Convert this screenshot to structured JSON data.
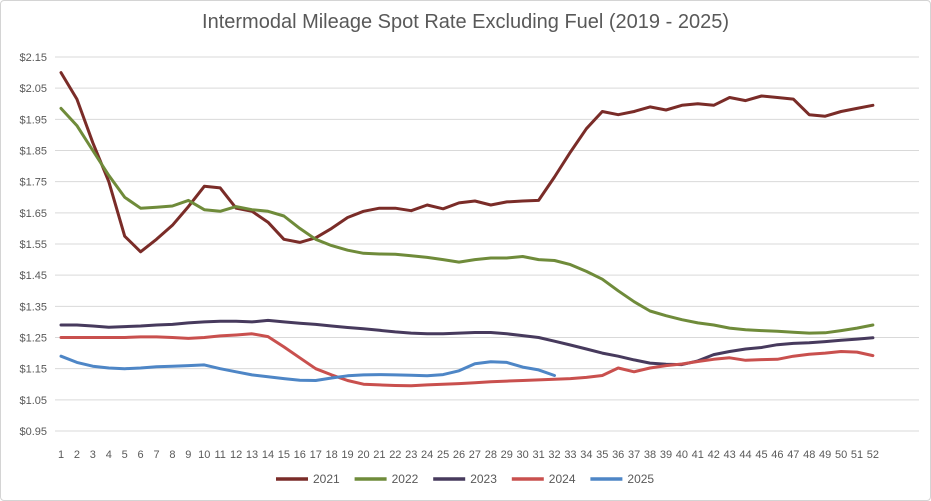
{
  "chart_data": {
    "type": "line",
    "title": "Intermodal Mileage Spot Rate Excluding Fuel (2019 - 2025)",
    "xlabel": "",
    "ylabel": "",
    "x_labels": [
      1,
      2,
      3,
      4,
      5,
      6,
      7,
      8,
      9,
      10,
      11,
      12,
      13,
      14,
      15,
      16,
      17,
      18,
      19,
      20,
      21,
      22,
      23,
      24,
      25,
      26,
      27,
      28,
      29,
      30,
      31,
      32,
      33,
      34,
      35,
      36,
      37,
      38,
      39,
      40,
      41,
      42,
      43,
      44,
      45,
      46,
      47,
      48,
      49,
      50,
      51,
      52
    ],
    "y_tick_labels": [
      "$2.15",
      "$2.05",
      "$1.95",
      "$1.85",
      "$1.75",
      "$1.65",
      "$1.55",
      "$1.45",
      "$1.35",
      "$1.25",
      "$1.15",
      "$1.05",
      "$0.95"
    ],
    "ylim": [
      0.95,
      2.15
    ],
    "y_tick_step": 0.1,
    "grid": "horizontal",
    "legend_position": "bottom",
    "series": [
      {
        "name": "2021",
        "color": "#7a2c28",
        "values": [
          2.1,
          2.015,
          1.875,
          1.75,
          1.575,
          1.525,
          1.565,
          1.61,
          1.67,
          1.735,
          1.73,
          1.665,
          1.655,
          1.62,
          1.565,
          1.555,
          1.57,
          1.6,
          1.635,
          1.655,
          1.665,
          1.665,
          1.657,
          1.675,
          1.663,
          1.682,
          1.688,
          1.675,
          1.685,
          1.688,
          1.69,
          1.765,
          1.845,
          1.92,
          1.975,
          1.965,
          1.975,
          1.99,
          1.98,
          1.995,
          2.0,
          1.995,
          2.02,
          2.01,
          2.025,
          2.02,
          2.015,
          1.965,
          1.96,
          1.975,
          1.985,
          1.995
        ]
      },
      {
        "name": "2022",
        "color": "#6f8b3a",
        "values": [
          1.985,
          1.93,
          1.85,
          1.77,
          1.7,
          1.665,
          1.668,
          1.672,
          1.69,
          1.66,
          1.655,
          1.67,
          1.66,
          1.655,
          1.64,
          1.6,
          1.565,
          1.545,
          1.53,
          1.52,
          1.518,
          1.517,
          1.512,
          1.507,
          1.5,
          1.492,
          1.5,
          1.505,
          1.505,
          1.51,
          1.5,
          1.497,
          1.484,
          1.462,
          1.437,
          1.4,
          1.365,
          1.335,
          1.32,
          1.307,
          1.297,
          1.29,
          1.28,
          1.275,
          1.272,
          1.27,
          1.267,
          1.264,
          1.265,
          1.272,
          1.28,
          1.29
        ]
      },
      {
        "name": "2023",
        "color": "#473a5d",
        "values": [
          1.29,
          1.29,
          1.287,
          1.283,
          1.285,
          1.287,
          1.29,
          1.292,
          1.297,
          1.3,
          1.302,
          1.302,
          1.3,
          1.305,
          1.3,
          1.296,
          1.292,
          1.287,
          1.282,
          1.278,
          1.273,
          1.268,
          1.264,
          1.262,
          1.262,
          1.264,
          1.266,
          1.266,
          1.262,
          1.256,
          1.25,
          1.238,
          1.226,
          1.213,
          1.2,
          1.19,
          1.178,
          1.168,
          1.164,
          1.163,
          1.175,
          1.195,
          1.205,
          1.213,
          1.218,
          1.227,
          1.231,
          1.233,
          1.237,
          1.241,
          1.245,
          1.249
        ]
      },
      {
        "name": "2024",
        "color": "#c9504e",
        "values": [
          1.25,
          1.25,
          1.25,
          1.25,
          1.25,
          1.252,
          1.252,
          1.25,
          1.247,
          1.25,
          1.255,
          1.258,
          1.262,
          1.253,
          1.22,
          1.185,
          1.15,
          1.13,
          1.112,
          1.1,
          1.098,
          1.096,
          1.095,
          1.098,
          1.1,
          1.102,
          1.105,
          1.108,
          1.11,
          1.112,
          1.114,
          1.116,
          1.118,
          1.122,
          1.128,
          1.152,
          1.14,
          1.152,
          1.16,
          1.165,
          1.173,
          1.18,
          1.185,
          1.177,
          1.179,
          1.18,
          1.19,
          1.196,
          1.2,
          1.205,
          1.203,
          1.192
        ]
      },
      {
        "name": "2025",
        "color": "#4e86c6",
        "values": [
          1.19,
          1.17,
          1.158,
          1.152,
          1.15,
          1.152,
          1.156,
          1.158,
          1.16,
          1.162,
          1.15,
          1.14,
          1.13,
          1.124,
          1.118,
          1.113,
          1.112,
          1.12,
          1.127,
          1.13,
          1.131,
          1.13,
          1.129,
          1.127,
          1.131,
          1.143,
          1.166,
          1.172,
          1.17,
          1.155,
          1.146,
          1.128
        ]
      }
    ]
  }
}
